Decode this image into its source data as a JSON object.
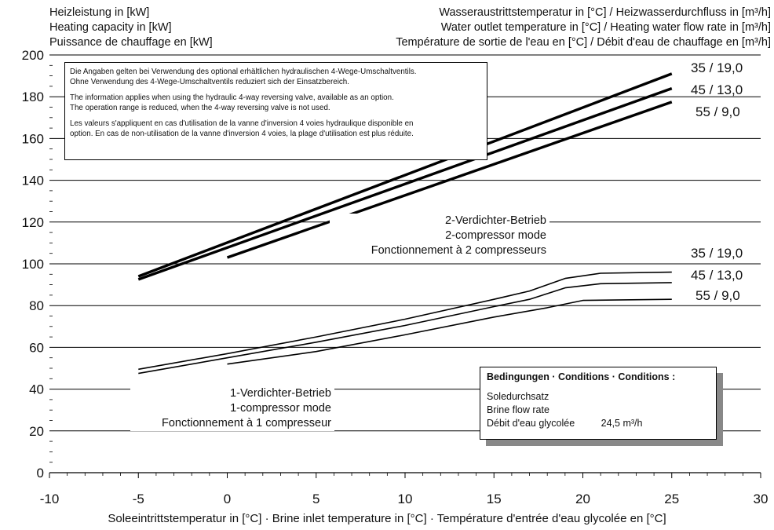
{
  "chart_data": {
    "type": "line",
    "ylabel_lines": [
      "Heizleistung in [kW]",
      "Heating capacity in [kW]",
      "Puissance de chauffage en [kW]"
    ],
    "legend_title_lines": [
      "Wasseraustrittstemperatur in [°C] / Heizwasserdurchfluss in [m³/h]",
      "Water outlet temperature in [°C] / Heating water flow rate in [m³/h]",
      "Température de sortie de l'eau en [°C] / Débit d'eau de chauffage en [m³/h]"
    ],
    "xlabel": "Soleeintrittstemperatur in [°C] · Brine inlet temperature in [°C] · Température d'entrée d'eau glycolée en [°C]",
    "xlim": [
      -10,
      30
    ],
    "ylim": [
      0,
      200
    ],
    "xticks": [
      -10,
      -5,
      0,
      5,
      10,
      15,
      20,
      25,
      30
    ],
    "yticks": [
      0,
      20,
      40,
      60,
      80,
      100,
      120,
      140,
      160,
      180,
      200
    ],
    "grid": "horizontal",
    "note_paragraphs": [
      [
        "Die Angaben gelten bei Verwendung des optional erhältlichen hydraulischen 4-Wege-Umschaltventils.",
        "Ohne Verwendung des 4-Wege-Umschaltventils reduziert sich der Einsatzbereich."
      ],
      [
        "The information applies when using the hydraulic 4-way reversing valve, available as an option.",
        "The operation range is reduced, when the 4-way reversing valve is not used."
      ],
      [
        "Les valeurs s'appliquent en cas d'utilisation de la vanne d'inversion 4 voies hydraulique disponible en",
        "option. En cas de non-utilisation de la vanne d'inversion 4 voies, la plage d'utilisation est plus réduite."
      ]
    ],
    "modes": [
      {
        "label_lines": [
          "2-Verdichter-Betrieb",
          "2-compressor mode",
          "Fonctionnement à 2 compresseurs"
        ],
        "series": [
          {
            "name": "35 / 19,0",
            "x": [
              -5,
              25
            ],
            "y": [
              94,
              191
            ]
          },
          {
            "name": "45 / 13,0",
            "x": [
              -5,
              25
            ],
            "y": [
              92.5,
              184
            ]
          },
          {
            "name": "55 / 9,0",
            "x": [
              0,
              25
            ],
            "y": [
              103,
              177.5
            ]
          }
        ]
      },
      {
        "label_lines": [
          "1-Verdichter-Betrieb",
          "1-compressor mode",
          "Fonctionnement à 1 compresseur"
        ],
        "series": [
          {
            "name": "35 / 19,0",
            "x": [
              -5,
              0,
              5,
              10,
              15,
              17,
              19,
              21,
              25
            ],
            "y": [
              49.5,
              57,
              65,
              73.5,
              83,
              87,
              93,
              95.5,
              96
            ]
          },
          {
            "name": "45 / 13,0",
            "x": [
              -5,
              0,
              5,
              10,
              15,
              17,
              19,
              21,
              25
            ],
            "y": [
              47.5,
              55,
              62.5,
              70.5,
              79.5,
              83,
              88.5,
              90.5,
              91
            ]
          },
          {
            "name": "55 / 9,0",
            "x": [
              0,
              5,
              10,
              15,
              18,
              20,
              25
            ],
            "y": [
              52,
              58,
              66,
              74.5,
              79,
              82.5,
              83
            ]
          }
        ]
      }
    ],
    "conditions": {
      "title": "Bedingungen · Conditions · Conditions :",
      "lines": [
        "Soledurchsatz",
        "Brine flow rate"
      ],
      "last_label": "Débit d'eau glycolée",
      "last_value": "24,5 m³/h"
    }
  }
}
